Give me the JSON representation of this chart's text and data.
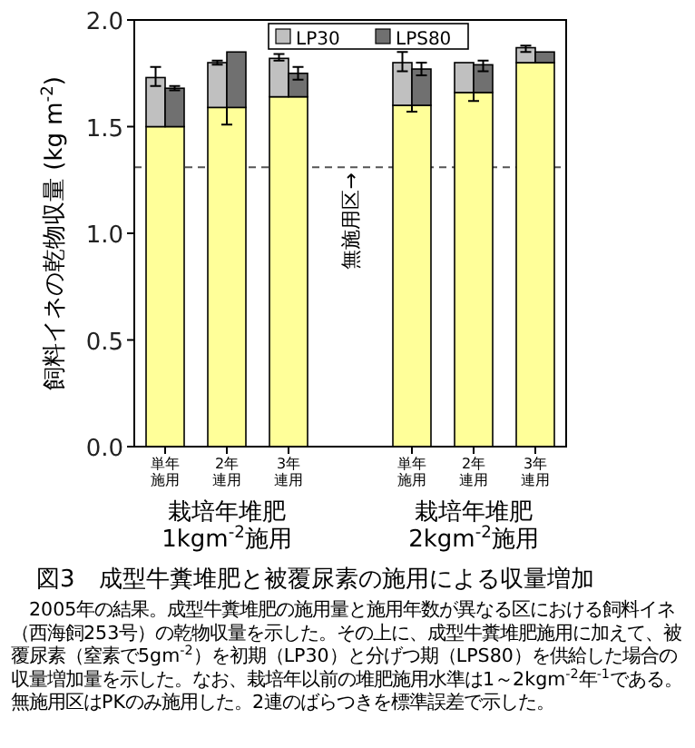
{
  "chart_data": {
    "type": "bar",
    "title": "図3　成型牛糞堆肥と被覆尿素の施用による収量増加",
    "ylabel": "飼料イネの乾物収量 (kg m$^{-2}$)",
    "categories": [
      "単年施用",
      "2年連用",
      "3年連用",
      null,
      "単年施用",
      "2年連用",
      "3年連用"
    ],
    "series": [
      {
        "color": "#ffff99",
        "values": [
          1.5,
          1.59,
          1.64,
          null,
          1.6,
          1.66,
          1.8
        ],
        "errors": [
          null,
          [
            1.51,
            1.66
          ],
          null,
          null,
          [
            1.57,
            1.61
          ],
          [
            1.62,
            1.69
          ],
          null
        ]
      },
      {
        "name": "LP30",
        "color": "#c0c0c0",
        "base": [
          1.5,
          1.59,
          1.64,
          null,
          1.6,
          1.66,
          1.8
        ],
        "values": [
          0.23,
          0.21,
          0.18,
          null,
          0.2,
          0.14,
          0.07
        ],
        "errors": [
          [
            1.69,
            1.78
          ],
          [
            1.79,
            1.81
          ],
          [
            1.81,
            1.84
          ],
          null,
          [
            1.76,
            1.85
          ],
          null,
          [
            1.85,
            1.88
          ]
        ]
      },
      {
        "name": "LPS80",
        "color": "#707070",
        "base": [
          1.5,
          1.59,
          1.64,
          null,
          1.6,
          1.66,
          1.8
        ],
        "values": [
          0.18,
          0.26,
          0.11,
          null,
          0.17,
          0.13,
          0.05
        ],
        "errors": [
          [
            1.67,
            1.69
          ],
          null,
          [
            1.72,
            1.78
          ],
          null,
          [
            1.74,
            1.8
          ],
          [
            1.76,
            1.81
          ],
          null
        ]
      }
    ],
    "ylim": [
      0,
      2
    ],
    "yticks": [
      {
        "value": 0,
        "label": "0.0"
      },
      {
        "value": 0.5,
        "label": "0.5"
      },
      {
        "value": 1,
        "label": "1.0"
      },
      {
        "value": 1.5,
        "label": "1.5"
      },
      {
        "value": 2,
        "label": "2.0"
      }
    ],
    "ref_lines": [
      {
        "axis": "y",
        "value": 1.31,
        "label": "無施用区→",
        "line_style": "dashed",
        "color": "#555555"
      }
    ],
    "legend": "top",
    "grid": false,
    "annotations": [
      "栽培年堆肥\n1kgm$^{-2}$施用",
      "栽培年堆肥\n2kgm$^{-2}$施用",
      "　2005年の結果。成型牛糞堆肥の施用量と施用年数が異なる区における飼料イネ（西海飼253号）の乾物収量を示した。その上に、成型牛糞堆肥施用に加えて、被覆尿素（窒素で5gm$^{-2}$）を初期（LP30）と分げつ期（LPS80）を供給した場合の収量増加量を示した。なお、栽培年以前の堆肥施用水準は1～2kgm$^{-2}$年$^{-1}$である。無施用区はPKのみ施用した。2連のばらつきを標準誤差で示した。"
    ]
  }
}
